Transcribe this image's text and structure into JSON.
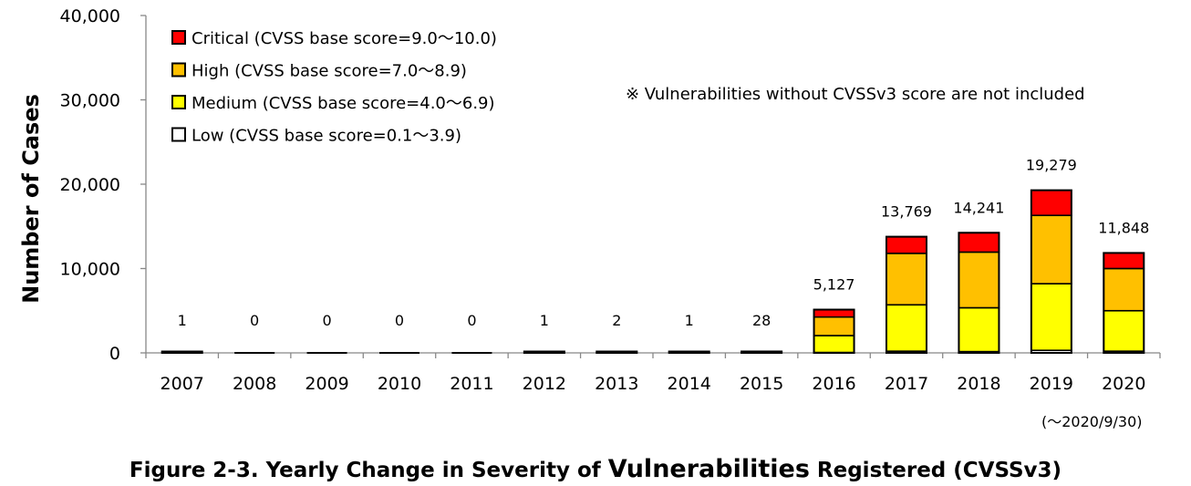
{
  "figure": {
    "title_parts": [
      "Figure 2-3. Yearly Change in Severity of ",
      "Vulnerabilities",
      " Registered (CVSSv3)"
    ],
    "note": "※ Vulnerabilities without CVSSv3 score are not included",
    "period_note": "(～2020/9/30)"
  },
  "chart_data": {
    "type": "bar",
    "stacked": true,
    "categories": [
      "2007",
      "2008",
      "2009",
      "2010",
      "2011",
      "2012",
      "2013",
      "2014",
      "2015",
      "2016",
      "2017",
      "2018",
      "2019",
      "2020"
    ],
    "series": [
      {
        "name": "Low (CVSS base score=0.1～3.9)",
        "color": "#ffffff",
        "values": [
          0,
          0,
          0,
          0,
          0,
          0,
          0,
          0,
          0,
          50,
          200,
          150,
          300,
          200
        ]
      },
      {
        "name": "Medium (CVSS base score=4.0～6.9)",
        "color": "#ffff00",
        "values": [
          1,
          0,
          0,
          0,
          0,
          1,
          1,
          1,
          18,
          2000,
          5500,
          5200,
          7900,
          4800
        ]
      },
      {
        "name": "High (CVSS base score=7.0～8.9)",
        "color": "#ffc000",
        "values": [
          0,
          0,
          0,
          0,
          0,
          0,
          1,
          0,
          8,
          2200,
          6100,
          6600,
          8100,
          5000
        ]
      },
      {
        "name": "Critical (CVSS base score=9.0～10.0)",
        "color": "#ff0000",
        "values": [
          0,
          0,
          0,
          0,
          0,
          0,
          0,
          0,
          2,
          877,
          1969,
          2291,
          2979,
          1848
        ]
      }
    ],
    "totals": [
      1,
      0,
      0,
      0,
      0,
      1,
      2,
      1,
      28,
      5127,
      13769,
      14241,
      19279,
      11848
    ],
    "total_labels": [
      "1",
      "0",
      "0",
      "0",
      "0",
      "1",
      "2",
      "1",
      "28",
      "5,127",
      "13,769",
      "14,241",
      "19,279",
      "11,848"
    ],
    "ylabel": "Number of Cases",
    "xlabel": "",
    "ylim": [
      0,
      40000
    ],
    "yticks": [
      0,
      10000,
      20000,
      30000,
      40000
    ],
    "ytick_labels": [
      "0",
      "10,000",
      "20,000",
      "30,000",
      "40,000"
    ],
    "grid": false,
    "legend_position": "top-left",
    "legend_order": [
      "Critical (CVSS base score=9.0～10.0)",
      "High (CVSS base score=7.0～8.9)",
      "Medium (CVSS base score=4.0～6.9)",
      "Low (CVSS base score=0.1～3.9)"
    ]
  }
}
